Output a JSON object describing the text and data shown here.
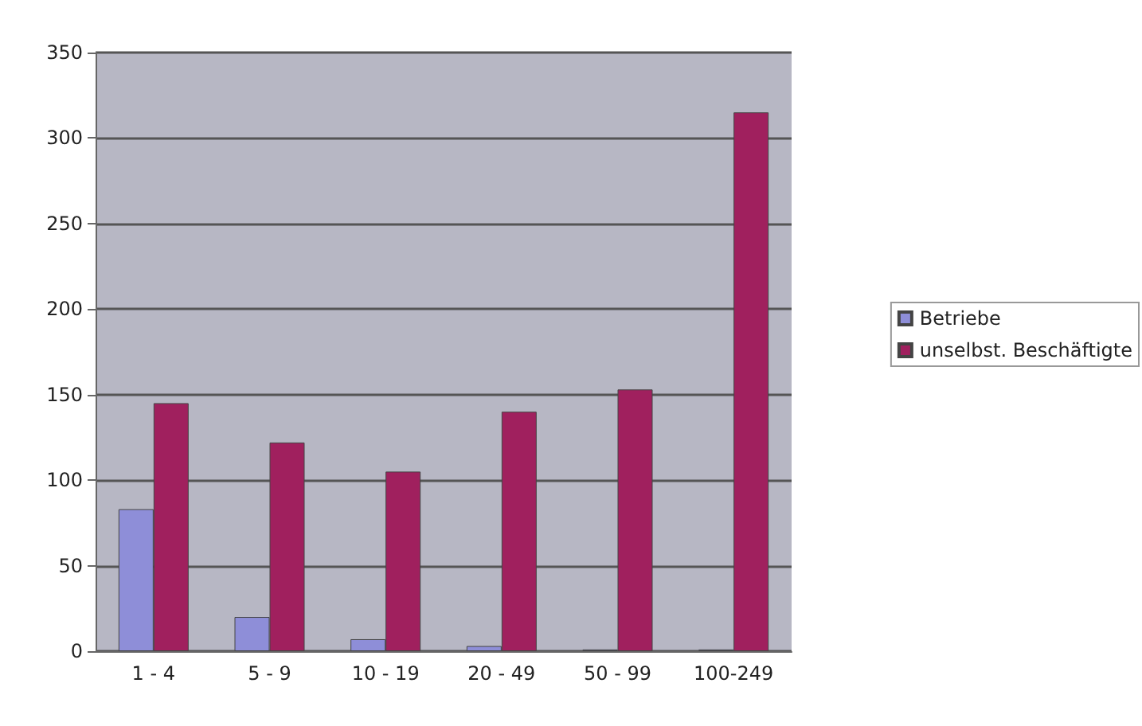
{
  "chart_data": {
    "type": "bar",
    "categories": [
      "1 - 4",
      "5 - 9",
      "10 - 19",
      "20 - 49",
      "50 - 99",
      "100-249"
    ],
    "series": [
      {
        "name": "Betriebe",
        "color": "#8e8ed8",
        "values": [
          83,
          20,
          7,
          3,
          1,
          1
        ]
      },
      {
        "name": "unselbst. Beschäftigte",
        "color": "#a0205e",
        "values": [
          145,
          122,
          105,
          140,
          153,
          315
        ]
      }
    ],
    "ylim": [
      0,
      350
    ],
    "yticks": [
      0,
      50,
      100,
      150,
      200,
      250,
      300,
      350
    ],
    "grid": "y",
    "legend": "right"
  }
}
